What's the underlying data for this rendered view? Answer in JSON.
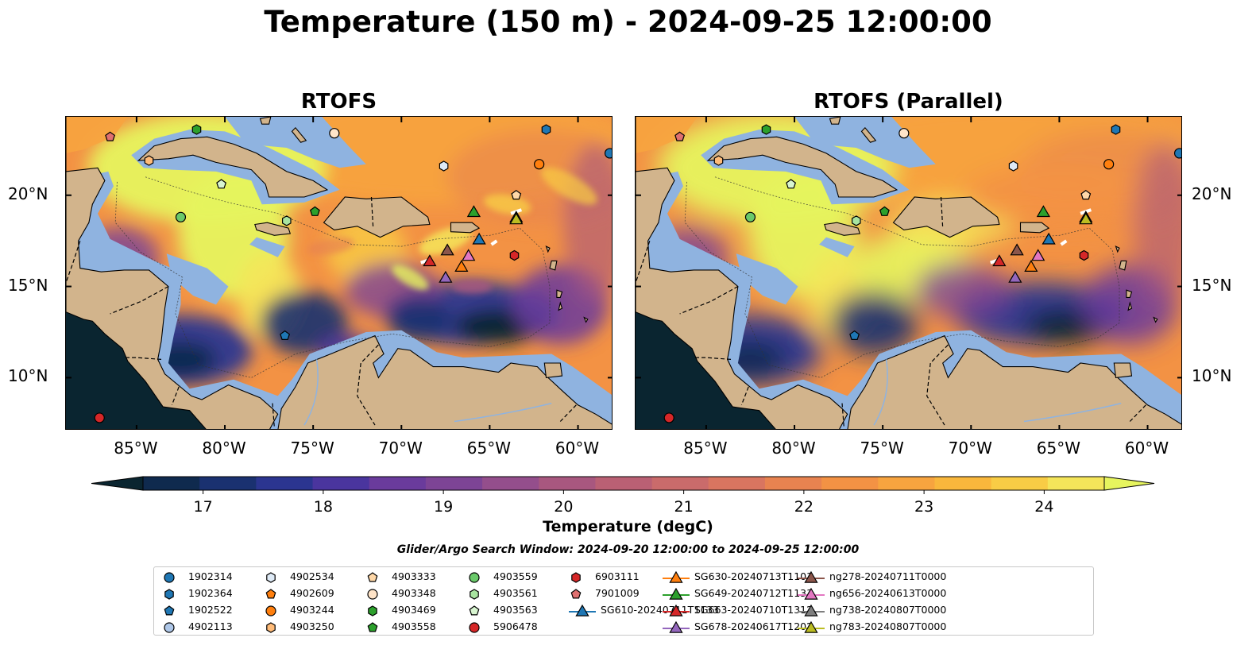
{
  "title": "Temperature (150 m) - 2024-09-25 12:00:00",
  "panels": [
    {
      "title": "RTOFS",
      "variant": "operational"
    },
    {
      "title": "RTOFS (Parallel)",
      "variant": "parallel"
    }
  ],
  "axes": {
    "lon_ticks": [
      "85°W",
      "80°W",
      "75°W",
      "70°W",
      "65°W",
      "60°W"
    ],
    "lat_ticks": [
      "20°N",
      "15°N",
      "10°N"
    ]
  },
  "colorbar": {
    "label": "Temperature (degC)",
    "ticks": [
      "17",
      "18",
      "19",
      "20",
      "21",
      "22",
      "23",
      "24"
    ],
    "min": 16.5,
    "max": 24.5,
    "step": 0.5,
    "colors": [
      "#0a2530",
      "#0f2a4e",
      "#1a3170",
      "#2b3590",
      "#4a359e",
      "#6a3b9c",
      "#7d4495",
      "#944e8c",
      "#a8577f",
      "#ba6074",
      "#ca6b6b",
      "#d97560",
      "#e88350",
      "#f39244",
      "#f7a43f",
      "#f9b73c",
      "#f8cc45",
      "#f4e55a",
      "#e6f45e"
    ]
  },
  "search_window": "Glider/Argo Search Window: 2024-09-20 12:00:00 to 2024-09-25 12:00:00",
  "legend": [
    {
      "label": "1902314",
      "marker": "circle",
      "color": "#1f77b4"
    },
    {
      "label": "1902364",
      "marker": "hexagon",
      "color": "#1f77b4"
    },
    {
      "label": "1902522",
      "marker": "pentagon",
      "color": "#1f77b4"
    },
    {
      "label": "4902113",
      "marker": "circle",
      "color": "#aec7e8"
    },
    {
      "label": "4902534",
      "marker": "hexagon",
      "color": "#deeaf6"
    },
    {
      "label": "4902609",
      "marker": "pentagon",
      "color": "#ff7f0e"
    },
    {
      "label": "4903244",
      "marker": "circle",
      "color": "#ff7f0e"
    },
    {
      "label": "4903250",
      "marker": "hexagon",
      "color": "#ffbb78"
    },
    {
      "label": "4903333",
      "marker": "pentagon",
      "color": "#ffd8a8"
    },
    {
      "label": "4903348",
      "marker": "circle",
      "color": "#ffe4c8"
    },
    {
      "label": "4903469",
      "marker": "hexagon",
      "color": "#2ca02c"
    },
    {
      "label": "4903558",
      "marker": "pentagon",
      "color": "#2ca02c"
    },
    {
      "label": "4903559",
      "marker": "circle",
      "color": "#6ac96a"
    },
    {
      "label": "4903561",
      "marker": "hexagon",
      "color": "#a8e4a0"
    },
    {
      "label": "4903563",
      "marker": "pentagon",
      "color": "#d8f5d0"
    },
    {
      "label": "5906478",
      "marker": "circle",
      "color": "#d62728"
    },
    {
      "label": "6903111",
      "marker": "hexagon",
      "color": "#d62728"
    },
    {
      "label": "7901009",
      "marker": "pentagon",
      "color": "#e07070"
    },
    {
      "label": "SG610-20240711T1133",
      "marker": "triangle-line",
      "color": "#1f77b4"
    },
    {
      "label": "SG630-20240713T1103",
      "marker": "triangle-line",
      "color": "#ff7f0e"
    },
    {
      "label": "SG649-20240712T1133",
      "marker": "triangle-line",
      "color": "#2ca02c"
    },
    {
      "label": "SG663-20240710T1312",
      "marker": "triangle-line",
      "color": "#d62728"
    },
    {
      "label": "SG678-20240617T1202",
      "marker": "triangle-line",
      "color": "#9467bd"
    },
    {
      "label": "ng278-20240711T0000",
      "marker": "triangle-line",
      "color": "#8c564b"
    },
    {
      "label": "ng656-20240613T0000",
      "marker": "triangle-line",
      "color": "#e377c2"
    },
    {
      "label": "ng738-20240807T0000",
      "marker": "triangle-line",
      "color": "#7f7f7f"
    },
    {
      "label": "ng783-20240807T0000",
      "marker": "triangle-line",
      "color": "#bcbd22"
    }
  ],
  "observations": [
    {
      "id": "1902314",
      "marker": "circle",
      "color": "#1f77b4",
      "lon": -58.2,
      "lat": 22.3
    },
    {
      "id": "1902364",
      "marker": "hexagon",
      "color": "#1f77b4",
      "lon": -61.8,
      "lat": 23.6
    },
    {
      "id": "1902522",
      "marker": "pentagon",
      "color": "#1f77b4",
      "lon": -76.6,
      "lat": 12.3
    },
    {
      "id": "4902113",
      "marker": "circle",
      "color": "#aec7e8",
      "lon": -79.0,
      "lat": 25.2
    },
    {
      "id": "4902534",
      "marker": "hexagon",
      "color": "#deeaf6",
      "lon": -67.6,
      "lat": 21.6
    },
    {
      "id": "4902609",
      "marker": "pentagon",
      "color": "#ff7f0e",
      "lon": -74.3,
      "lat": 25.1
    },
    {
      "id": "4903244",
      "marker": "circle",
      "color": "#ff7f0e",
      "lon": -62.2,
      "lat": 21.7
    },
    {
      "id": "4903250",
      "marker": "hexagon",
      "color": "#ffbb78",
      "lon": -84.3,
      "lat": 21.9
    },
    {
      "id": "4903333",
      "marker": "pentagon",
      "color": "#ffd8a8",
      "lon": -63.5,
      "lat": 20.0
    },
    {
      "id": "4903348",
      "marker": "circle",
      "color": "#ffe4c8",
      "lon": -73.8,
      "lat": 23.4
    },
    {
      "id": "4903469",
      "marker": "hexagon",
      "color": "#2ca02c",
      "lon": -81.6,
      "lat": 23.6
    },
    {
      "id": "4903558",
      "marker": "pentagon",
      "color": "#2ca02c",
      "lon": -74.9,
      "lat": 19.1
    },
    {
      "id": "4903559",
      "marker": "circle",
      "color": "#6ac96a",
      "lon": -82.5,
      "lat": 18.8
    },
    {
      "id": "4903561",
      "marker": "hexagon",
      "color": "#a8e4a0",
      "lon": -76.5,
      "lat": 18.6
    },
    {
      "id": "4903563",
      "marker": "pentagon",
      "color": "#d8f5d0",
      "lon": -80.2,
      "lat": 20.6
    },
    {
      "id": "5906478",
      "marker": "circle",
      "color": "#d62728",
      "lon": -87.1,
      "lat": 7.8
    },
    {
      "id": "6903111",
      "marker": "hexagon",
      "color": "#d62728",
      "lon": -63.6,
      "lat": 16.7
    },
    {
      "id": "7901009",
      "marker": "pentagon",
      "color": "#e07070",
      "lon": -86.5,
      "lat": 23.2
    },
    {
      "id": "SG610-20240711T1133",
      "marker": "triangle",
      "color": "#1f77b4",
      "lon": -65.6,
      "lat": 17.6
    },
    {
      "id": "SG630-20240713T1103",
      "marker": "triangle",
      "color": "#ff7f0e",
      "lon": -66.6,
      "lat": 16.1
    },
    {
      "id": "SG649-20240712T1133",
      "marker": "triangle",
      "color": "#2ca02c",
      "lon": -65.9,
      "lat": 19.1
    },
    {
      "id": "SG663-20240710T1312",
      "marker": "triangle",
      "color": "#d62728",
      "lon": -68.4,
      "lat": 16.4
    },
    {
      "id": "SG678-20240617T1202",
      "marker": "triangle",
      "color": "#9467bd",
      "lon": -67.5,
      "lat": 15.5
    },
    {
      "id": "ng278-20240711T0000",
      "marker": "triangle",
      "color": "#8c564b",
      "lon": -67.4,
      "lat": 17.0
    },
    {
      "id": "ng656-20240613T0000",
      "marker": "triangle",
      "color": "#e377c2",
      "lon": -66.2,
      "lat": 16.7
    },
    {
      "id": "ng738-20240807T0000",
      "marker": "triangle",
      "color": "#7f7f7f",
      "lon": -63.5,
      "lat": 18.8
    },
    {
      "id": "ng783-20240807T0000",
      "marker": "triangle",
      "color": "#bcbd22",
      "lon": -63.5,
      "lat": 18.7
    }
  ],
  "style": {
    "land": "#d2b48c",
    "shelf": "#8fb3e0",
    "deep": "#0a2530"
  }
}
